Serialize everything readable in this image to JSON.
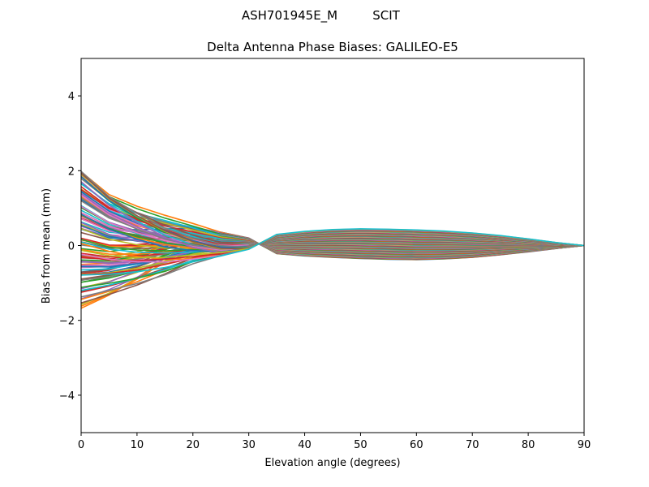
{
  "figure": {
    "suptitle_left": "ASH701945E_M",
    "suptitle_right": "SCIT"
  },
  "chart_data": {
    "type": "line",
    "title": "Delta Antenna Phase Biases: GALILEO-E5",
    "xlabel": "Elevation angle (degrees)",
    "ylabel": "Bias from mean (mm)",
    "xlim": [
      0,
      90
    ],
    "ylim": [
      -5,
      5
    ],
    "xticks": [
      0,
      10,
      20,
      30,
      40,
      50,
      60,
      70,
      80,
      90
    ],
    "yticks": [
      -4,
      -2,
      0,
      2,
      4
    ],
    "ytick_labels": [
      "−4",
      "−2",
      "0",
      "2",
      "4"
    ],
    "grid": false,
    "x": [
      0,
      5,
      10,
      15,
      20,
      25,
      30,
      35,
      40,
      45,
      50,
      55,
      60,
      65,
      70,
      75,
      80,
      85,
      90
    ],
    "palette": [
      "#1f77b4",
      "#ff7f0e",
      "#2ca02c",
      "#d62728",
      "#9467bd",
      "#8c564b",
      "#e377c2",
      "#7f7f7f",
      "#bcbd22",
      "#17becf"
    ],
    "series_count": 120,
    "envelope_top": [
      1.95,
      1.35,
      1.05,
      0.82,
      0.6,
      0.36,
      0.2,
      0.3,
      0.38,
      0.43,
      0.45,
      0.44,
      0.42,
      0.39,
      0.34,
      0.27,
      0.18,
      0.08,
      0.0
    ],
    "envelope_bottom": [
      -1.65,
      -1.4,
      -1.15,
      -0.85,
      -0.52,
      -0.28,
      -0.1,
      -0.22,
      -0.28,
      -0.32,
      -0.35,
      -0.37,
      -0.38,
      -0.36,
      -0.32,
      -0.25,
      -0.17,
      -0.08,
      0.0
    ]
  }
}
